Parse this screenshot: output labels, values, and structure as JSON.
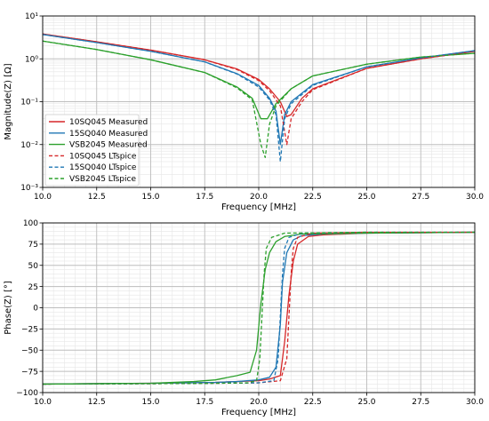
{
  "colors": {
    "red": "#d62728",
    "blue": "#1f77b4",
    "green": "#2ca02c",
    "grid_major": "#bdbdbd",
    "grid_minor": "#e6e6e6"
  },
  "chart_data": [
    {
      "type": "line",
      "xlabel": "Frequency [MHz]",
      "ylabel": "Magnitude(Z) [Ω]",
      "xlim": [
        10.0,
        30.0
      ],
      "ylim": [
        0.001,
        10
      ],
      "yscale": "log",
      "grid": true,
      "legend_position": "lower-left",
      "x_ticks": [
        "10.0",
        "12.5",
        "15.0",
        "17.5",
        "20.0",
        "22.5",
        "25.0",
        "27.5",
        "30.0"
      ],
      "y_ticks": [
        "10⁻³",
        "10⁻²",
        "10⁻¹",
        "10⁰",
        "10¹"
      ],
      "series": [
        {
          "name": "10SQ045 Measured",
          "color": "#d62728",
          "style": "solid",
          "x": [
            10,
            12.5,
            15,
            17.5,
            19,
            20,
            20.5,
            21,
            21.3,
            21.5,
            22,
            22.5,
            25,
            27.5,
            30
          ],
          "y": [
            3.8,
            2.5,
            1.6,
            0.95,
            0.58,
            0.33,
            0.2,
            0.1,
            0.045,
            0.05,
            0.12,
            0.2,
            0.6,
            1.0,
            1.5
          ]
        },
        {
          "name": "15SQ040 Measured",
          "color": "#1f77b4",
          "style": "solid",
          "x": [
            10,
            12.5,
            15,
            17.5,
            19,
            20,
            20.5,
            20.8,
            21,
            21.2,
            21.5,
            22.5,
            25,
            27.5,
            30
          ],
          "y": [
            3.7,
            2.4,
            1.5,
            0.85,
            0.45,
            0.24,
            0.12,
            0.06,
            0.01,
            0.05,
            0.1,
            0.25,
            0.65,
            1.05,
            1.55
          ]
        },
        {
          "name": "VSB2045 Measured",
          "color": "#2ca02c",
          "style": "solid",
          "x": [
            10,
            12.5,
            15,
            17.5,
            19,
            19.7,
            20.1,
            20.4,
            20.8,
            21.5,
            22.5,
            25,
            27.5,
            30
          ],
          "y": [
            2.6,
            1.65,
            0.95,
            0.48,
            0.22,
            0.12,
            0.04,
            0.04,
            0.09,
            0.2,
            0.4,
            0.75,
            1.1,
            1.35
          ]
        },
        {
          "name": "10SQ045 LTspice",
          "color": "#d62728",
          "style": "dashed",
          "x": [
            10,
            12.5,
            15,
            17.5,
            19,
            20,
            20.5,
            21,
            21.3,
            21.5,
            22,
            22.5,
            25,
            27.5,
            30
          ],
          "y": [
            3.8,
            2.5,
            1.6,
            0.95,
            0.56,
            0.31,
            0.18,
            0.08,
            0.01,
            0.04,
            0.1,
            0.19,
            0.6,
            1.0,
            1.5
          ]
        },
        {
          "name": "15SQ040 LTspice",
          "color": "#1f77b4",
          "style": "dashed",
          "x": [
            10,
            12.5,
            15,
            17.5,
            19,
            20,
            20.5,
            20.8,
            21,
            21.2,
            21.5,
            22.5,
            25,
            27.5,
            30
          ],
          "y": [
            3.7,
            2.4,
            1.5,
            0.85,
            0.44,
            0.22,
            0.11,
            0.05,
            0.004,
            0.04,
            0.09,
            0.24,
            0.65,
            1.05,
            1.55
          ]
        },
        {
          "name": "VSB2045 LTspice",
          "color": "#2ca02c",
          "style": "dashed",
          "x": [
            10,
            12.5,
            15,
            17.5,
            19,
            19.7,
            20.1,
            20.3,
            20.5,
            20.8,
            21.5,
            22.5,
            25,
            27.5,
            30
          ],
          "y": [
            2.6,
            1.65,
            0.95,
            0.48,
            0.21,
            0.11,
            0.01,
            0.005,
            0.03,
            0.08,
            0.2,
            0.4,
            0.75,
            1.1,
            1.35
          ]
        }
      ]
    },
    {
      "type": "line",
      "xlabel": "Frequency [MHz]",
      "ylabel": "Phase(Z) [°]",
      "xlim": [
        10.0,
        30.0
      ],
      "ylim": [
        -100,
        100
      ],
      "grid": true,
      "x_ticks": [
        "10.0",
        "12.5",
        "15.0",
        "17.5",
        "20.0",
        "22.5",
        "25.0",
        "27.5",
        "30.0"
      ],
      "y_ticks": [
        "−100",
        "−75",
        "−50",
        "−25",
        "0",
        "25",
        "50",
        "75",
        "100"
      ],
      "series": [
        {
          "name": "10SQ045 Measured",
          "color": "#d62728",
          "style": "solid",
          "x": [
            10,
            15,
            18,
            19,
            20,
            20.5,
            21,
            21.2,
            21.4,
            21.6,
            21.8,
            22.3,
            23,
            25,
            30
          ],
          "y": [
            -90,
            -89,
            -88,
            -87,
            -86,
            -84,
            -80,
            -40,
            15,
            55,
            75,
            84,
            86,
            88,
            89
          ]
        },
        {
          "name": "15SQ040 Measured",
          "color": "#1f77b4",
          "style": "solid",
          "x": [
            10,
            15,
            18,
            19,
            20,
            20.5,
            20.8,
            21,
            21.1,
            21.3,
            21.6,
            22,
            23,
            25,
            30
          ],
          "y": [
            -90,
            -89,
            -88,
            -87,
            -85,
            -82,
            -70,
            -20,
            30,
            65,
            80,
            85,
            87,
            88,
            89
          ]
        },
        {
          "name": "VSB2045 Measured",
          "color": "#2ca02c",
          "style": "solid",
          "x": [
            10,
            15,
            17,
            18,
            19,
            19.6,
            19.9,
            20.1,
            20.3,
            20.5,
            20.8,
            21.2,
            22,
            25,
            30
          ],
          "y": [
            -90,
            -89,
            -87,
            -85,
            -80,
            -76,
            -50,
            5,
            45,
            65,
            78,
            84,
            87,
            88,
            89
          ]
        },
        {
          "name": "10SQ045 LTspice",
          "color": "#d62728",
          "style": "dashed",
          "x": [
            10,
            15,
            18,
            20,
            21,
            21.3,
            21.4,
            21.5,
            21.6,
            21.8,
            22.5,
            25,
            30
          ],
          "y": [
            -90,
            -89.5,
            -89,
            -88.5,
            -86,
            -60,
            -10,
            40,
            70,
            83,
            88,
            89,
            89
          ]
        },
        {
          "name": "15SQ040 LTspice",
          "color": "#1f77b4",
          "style": "dashed",
          "x": [
            10,
            15,
            18,
            20,
            20.7,
            20.9,
            21,
            21.1,
            21.2,
            21.4,
            22,
            25,
            30
          ],
          "y": [
            -90,
            -89.5,
            -89,
            -88.5,
            -86,
            -60,
            -10,
            40,
            70,
            83,
            88,
            89,
            89
          ]
        },
        {
          "name": "VSB2045 LTspice",
          "color": "#2ca02c",
          "style": "dashed",
          "x": [
            10,
            15,
            18,
            19.5,
            19.9,
            20.05,
            20.15,
            20.25,
            20.35,
            20.6,
            21.2,
            25,
            30
          ],
          "y": [
            -90,
            -89.5,
            -89,
            -88.5,
            -86,
            -60,
            -10,
            40,
            70,
            83,
            88,
            89,
            89
          ]
        }
      ]
    }
  ]
}
